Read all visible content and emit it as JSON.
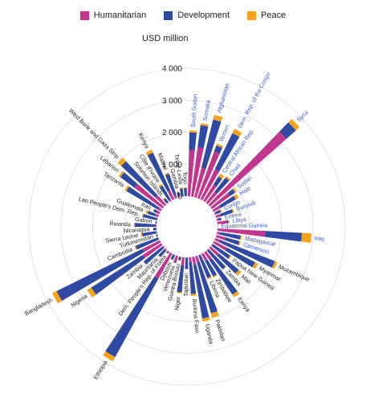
{
  "legend": [
    {
      "name": "Humanitarian",
      "color": "#c2368f"
    },
    {
      "name": "Development",
      "color": "#2f4aa3"
    },
    {
      "name": "Peace",
      "color": "#f5a31a"
    }
  ],
  "unit_label": "USD million",
  "chart_data": {
    "type": "bar",
    "subtype": "radial stacked bar",
    "ylabel": "USD million",
    "ylim": [
      0,
      4000
    ],
    "ticks": [
      "0",
      "1 000",
      "2 000",
      "3 000",
      "4 000"
    ],
    "tick_values": [
      0,
      1000,
      2000,
      3000,
      4000
    ],
    "grid": true,
    "legend_position": "top",
    "highlight_color": "#3b59c6",
    "series_colors": [
      "#c2368f",
      "#2f4aa3",
      "#f5a31a"
    ],
    "series": [
      {
        "name": "Humanitarian"
      },
      {
        "name": "Development"
      },
      {
        "name": "Peace"
      }
    ],
    "categories": [
      {
        "name": "South Sudan",
        "h": 1450,
        "d": 550,
        "p": 60,
        "hl": true
      },
      {
        "name": "Somalia",
        "h": 1550,
        "d": 700,
        "p": 60,
        "hl": true
      },
      {
        "name": "Afghanistan",
        "h": 950,
        "d": 1550,
        "p": 150,
        "hl": true
      },
      {
        "name": "Yemen",
        "h": 1550,
        "d": 200,
        "p": 60,
        "hl": true
      },
      {
        "name": "Dem. Rep. of the Congo",
        "h": 1050,
        "d": 1250,
        "p": 150,
        "hl": true
      },
      {
        "name": "Central African Rep.",
        "h": 600,
        "d": 300,
        "p": 100,
        "hl": true
      },
      {
        "name": "Chad",
        "h": 450,
        "d": 550,
        "p": 60,
        "hl": true
      },
      {
        "name": "Syria",
        "h": 3200,
        "d": 400,
        "p": 150,
        "hl": true
      },
      {
        "name": "Sudan",
        "h": 700,
        "d": 200,
        "p": 60,
        "hl": true
      },
      {
        "name": "Haiti",
        "h": 250,
        "d": 550,
        "p": 100,
        "hl": true
      },
      {
        "name": "Congo",
        "h": 50,
        "d": 150,
        "p": 40,
        "hl": true
      },
      {
        "name": "Burundi",
        "h": 150,
        "d": 400,
        "p": 40,
        "hl": true
      },
      {
        "name": "Eritrea",
        "h": 40,
        "d": 100,
        "p": 20,
        "hl": true
      },
      {
        "name": "Libya",
        "h": 300,
        "d": 50,
        "p": 30,
        "hl": true
      },
      {
        "name": "Equatorial Guinea",
        "h": 0,
        "d": 10,
        "p": 5,
        "hl": true
      },
      {
        "name": "Iraq",
        "h": 1500,
        "d": 1150,
        "p": 300,
        "hl": true
      },
      {
        "name": "Madagascar",
        "h": 100,
        "d": 650,
        "p": 40,
        "hl": true
      },
      {
        "name": "Cameroon",
        "h": 300,
        "d": 450,
        "p": 40,
        "hl": true
      },
      {
        "name": "Mozambique",
        "h": 150,
        "d": 1850,
        "p": 80,
        "hl": false
      },
      {
        "name": "Myanmar",
        "h": 450,
        "d": 1000,
        "p": 100,
        "hl": false
      },
      {
        "name": "Papua New Guinea",
        "h": 20,
        "d": 650,
        "p": 40,
        "hl": false
      },
      {
        "name": "Mali",
        "h": 350,
        "d": 800,
        "p": 100,
        "hl": false
      },
      {
        "name": "Zambia",
        "h": 30,
        "d": 750,
        "p": 20,
        "hl": false
      },
      {
        "name": "Kenya",
        "h": 300,
        "d": 1300,
        "p": 100,
        "hl": false
      },
      {
        "name": "Zimbabwe",
        "h": 250,
        "d": 550,
        "p": 30,
        "hl": false
      },
      {
        "name": "Liberia",
        "h": 20,
        "d": 750,
        "p": 40,
        "hl": false
      },
      {
        "name": "Pakistan",
        "h": 200,
        "d": 1650,
        "p": 150,
        "hl": false
      },
      {
        "name": "Uganda",
        "h": 250,
        "d": 1700,
        "p": 100,
        "hl": false
      },
      {
        "name": "Burkina Faso",
        "h": 150,
        "d": 1000,
        "p": 60,
        "hl": false
      },
      {
        "name": "Tajikistan",
        "h": 10,
        "d": 350,
        "p": 20,
        "hl": false
      },
      {
        "name": "Niger",
        "h": 250,
        "d": 850,
        "p": 40,
        "hl": false
      },
      {
        "name": "Guinea-Bissau",
        "h": 10,
        "d": 100,
        "p": 20,
        "hl": false
      },
      {
        "name": "Venezuela",
        "h": 200,
        "d": 30,
        "p": 10,
        "hl": false
      },
      {
        "name": "Djibouti",
        "h": 20,
        "d": 150,
        "p": 10,
        "hl": false
      },
      {
        "name": "Ethiopia",
        "h": 900,
        "d": 2800,
        "p": 150,
        "hl": false
      },
      {
        "name": "Dem. People's Rep. of Korea",
        "h": 40,
        "d": 30,
        "p": 10,
        "hl": false
      },
      {
        "name": "Mauritania",
        "h": 50,
        "d": 250,
        "p": 20,
        "hl": false
      },
      {
        "name": "Zambia",
        "h": 30,
        "d": 750,
        "p": 20,
        "hl": false
      },
      {
        "name": "Nigeria",
        "h": 700,
        "d": 1900,
        "p": 150,
        "hl": false
      },
      {
        "name": "Bangladesh",
        "h": 600,
        "d": 3000,
        "p": 150,
        "hl": false
      },
      {
        "name": "Cambodia",
        "h": 10,
        "d": 750,
        "p": 40,
        "hl": false
      },
      {
        "name": "Turkmenistan",
        "h": 5,
        "d": 40,
        "p": 5,
        "hl": false
      },
      {
        "name": "Sierra Leone",
        "h": 20,
        "d": 450,
        "p": 30,
        "hl": false
      },
      {
        "name": "Nicaragua",
        "h": 5,
        "d": 100,
        "p": 10,
        "hl": false
      },
      {
        "name": "Rwanda",
        "h": 30,
        "d": 650,
        "p": 30,
        "hl": false
      },
      {
        "name": "Gabon",
        "h": 5,
        "d": 40,
        "p": 5,
        "hl": false
      },
      {
        "name": "Lao People's Dem. Rep.",
        "h": 10,
        "d": 450,
        "p": 30,
        "hl": false
      },
      {
        "name": "Guatemala",
        "h": 100,
        "d": 250,
        "p": 60,
        "hl": false
      },
      {
        "name": "Iran",
        "h": 100,
        "d": 100,
        "p": 20,
        "hl": false
      },
      {
        "name": "Tanzania",
        "h": 100,
        "d": 1150,
        "p": 60,
        "hl": false
      },
      {
        "name": "Lebanon",
        "h": 1100,
        "d": 550,
        "p": 60,
        "hl": false
      },
      {
        "name": "West Bank and Gaza Strip",
        "h": 400,
        "d": 1450,
        "p": 150,
        "hl": false
      },
      {
        "name": "Solomon Islands",
        "h": 10,
        "d": 150,
        "p": 40,
        "hl": false
      },
      {
        "name": "Côte d'Ivoire",
        "h": 50,
        "d": 500,
        "p": 60,
        "hl": false
      },
      {
        "name": "Kenya",
        "h": 300,
        "d": 1300,
        "p": 100,
        "hl": false
      },
      {
        "name": "Malawi",
        "h": 100,
        "d": 700,
        "p": 40,
        "hl": false
      },
      {
        "name": "Gambia",
        "h": 10,
        "d": 150,
        "p": 20,
        "hl": false
      },
      {
        "name": "Timor-Leste",
        "h": 5,
        "d": 250,
        "p": 30,
        "hl": false
      },
      {
        "name": "Togo",
        "h": 10,
        "d": 250,
        "p": 20,
        "hl": false
      }
    ]
  }
}
